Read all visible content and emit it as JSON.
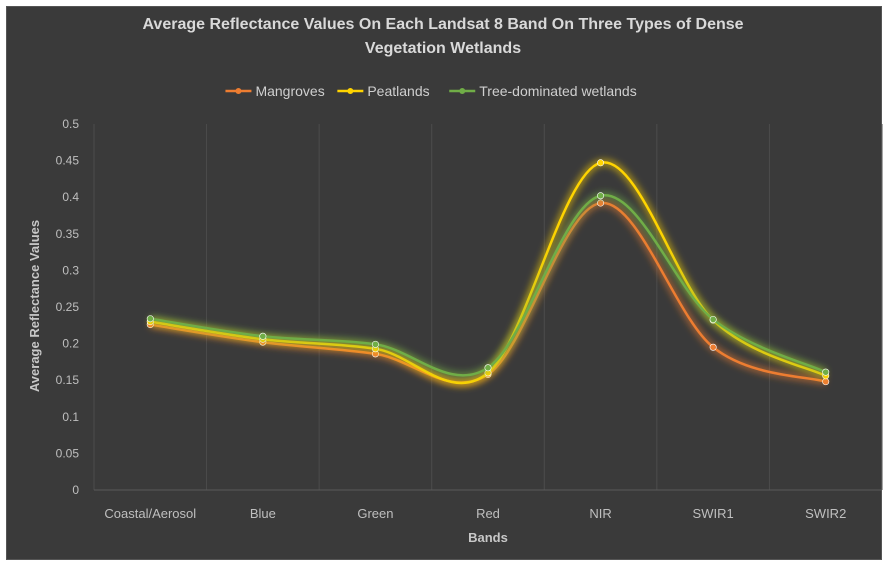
{
  "chart_data": {
    "type": "line",
    "title_line1": "Average Reflectance Values On Each Landsat 8 Band On Three Types of Dense",
    "title_line2": "Vegetation Wetlands",
    "xlabel": "Bands",
    "ylabel": "Average Reflectance Values",
    "categories": [
      "Coastal/Aerosol",
      "Blue",
      "Green",
      "Red",
      "NIR",
      "SWIR1",
      "SWIR2"
    ],
    "ylim": [
      0,
      0.5
    ],
    "yticks": [
      "0",
      "0.05",
      "0.1",
      "0.15",
      "0.2",
      "0.25",
      "0.3",
      "0.35",
      "0.4",
      "0.45",
      "0.5"
    ],
    "grid": "vertical",
    "legend_position": "top",
    "smooth": true,
    "series": [
      {
        "name": "Mangroves",
        "color": "#ED7D31",
        "values": [
          0.226,
          0.202,
          0.186,
          0.158,
          0.392,
          0.195,
          0.148
        ]
      },
      {
        "name": "Peatlands",
        "color": "#FFD400",
        "values": [
          0.23,
          0.206,
          0.193,
          0.16,
          0.447,
          0.232,
          0.156
        ]
      },
      {
        "name": "Tree-dominated wetlands",
        "color": "#70AD47",
        "values": [
          0.234,
          0.21,
          0.199,
          0.167,
          0.402,
          0.233,
          0.161
        ]
      }
    ]
  }
}
